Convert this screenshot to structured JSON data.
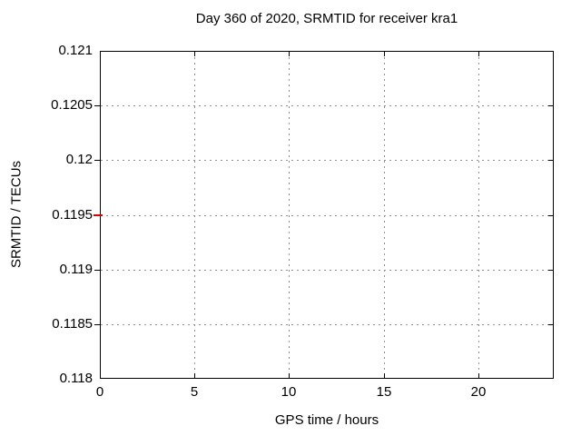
{
  "chart_data": {
    "type": "scatter",
    "title": "Day 360 of 2020, SRMTID for receiver kra1",
    "xlabel": "GPS time / hours",
    "ylabel": "SRMTID / TECUs",
    "xlim": [
      0,
      24
    ],
    "ylim": [
      0.118,
      0.121
    ],
    "xticks": [
      0,
      5,
      10,
      15,
      20
    ],
    "xtick_labels": [
      "0",
      "5",
      "10",
      "15",
      "20"
    ],
    "yticks": [
      0.118,
      0.1185,
      0.119,
      0.1195,
      0.12,
      0.1205,
      0.121
    ],
    "ytick_labels": [
      "0.118",
      "0.1185",
      "0.119",
      "0.1195",
      "0.12",
      "0.1205",
      "0.121"
    ],
    "grid": true,
    "legend": "none",
    "series": [
      {
        "name": "SRMTID",
        "color": "#dd0000",
        "marker": "short-horizontal-dash",
        "points": [
          {
            "x": 0,
            "y": 0.1195
          }
        ]
      }
    ]
  },
  "colors": {
    "background": "#ffffff",
    "plot_border": "#000000",
    "grid": "#8f8f8f",
    "text": "#000000",
    "series_1": "#dd0000"
  }
}
